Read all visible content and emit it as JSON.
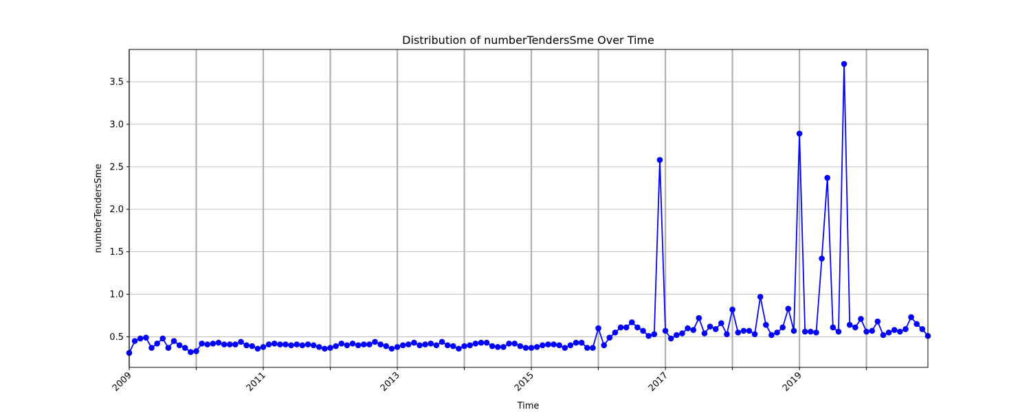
{
  "chart_data": {
    "type": "line",
    "title": "Distribution of numberTendersSme Over Time",
    "xlabel": "Time",
    "ylabel": "numberTendersSme",
    "xlim": [
      "2009-01",
      "2020-12"
    ],
    "ylim": [
      0.14,
      3.88
    ],
    "x_ticks": [
      {
        "date": "2009-01",
        "label": "2009"
      },
      {
        "date": "2010-01",
        "label": ""
      },
      {
        "date": "2011-01",
        "label": "2011"
      },
      {
        "date": "2012-01",
        "label": ""
      },
      {
        "date": "2013-01",
        "label": "2013"
      },
      {
        "date": "2014-01",
        "label": ""
      },
      {
        "date": "2015-01",
        "label": "2015"
      },
      {
        "date": "2016-01",
        "label": ""
      },
      {
        "date": "2017-01",
        "label": "2017"
      },
      {
        "date": "2018-01",
        "label": ""
      },
      {
        "date": "2019-01",
        "label": "2019"
      },
      {
        "date": "2020-01",
        "label": ""
      }
    ],
    "y_ticks": [
      {
        "value": 0.5,
        "label": "0.5"
      },
      {
        "value": 1.0,
        "label": "1.0"
      },
      {
        "value": 1.5,
        "label": "1.5"
      },
      {
        "value": 2.0,
        "label": "2.0"
      },
      {
        "value": 2.5,
        "label": "2.5"
      },
      {
        "value": 3.0,
        "label": "3.0"
      },
      {
        "value": 3.5,
        "label": "3.5"
      }
    ],
    "grid": true,
    "series": [
      {
        "color": "#0000ff",
        "marker": "circle",
        "points": [
          [
            "2009-01",
            0.31
          ],
          [
            "2009-02",
            0.45
          ],
          [
            "2009-03",
            0.48
          ],
          [
            "2009-04",
            0.49
          ],
          [
            "2009-05",
            0.37
          ],
          [
            "2009-06",
            0.42
          ],
          [
            "2009-07",
            0.48
          ],
          [
            "2009-08",
            0.37
          ],
          [
            "2009-09",
            0.45
          ],
          [
            "2009-10",
            0.4
          ],
          [
            "2009-11",
            0.37
          ],
          [
            "2009-12",
            0.32
          ],
          [
            "2010-01",
            0.33
          ],
          [
            "2010-02",
            0.42
          ],
          [
            "2010-03",
            0.41
          ],
          [
            "2010-04",
            0.42
          ],
          [
            "2010-05",
            0.43
          ],
          [
            "2010-06",
            0.41
          ],
          [
            "2010-07",
            0.41
          ],
          [
            "2010-08",
            0.41
          ],
          [
            "2010-09",
            0.44
          ],
          [
            "2010-10",
            0.4
          ],
          [
            "2010-11",
            0.39
          ],
          [
            "2010-12",
            0.36
          ],
          [
            "2011-01",
            0.38
          ],
          [
            "2011-02",
            0.41
          ],
          [
            "2011-03",
            0.42
          ],
          [
            "2011-04",
            0.41
          ],
          [
            "2011-05",
            0.41
          ],
          [
            "2011-06",
            0.4
          ],
          [
            "2011-07",
            0.41
          ],
          [
            "2011-08",
            0.4
          ],
          [
            "2011-09",
            0.41
          ],
          [
            "2011-10",
            0.4
          ],
          [
            "2011-11",
            0.38
          ],
          [
            "2011-12",
            0.36
          ],
          [
            "2012-01",
            0.37
          ],
          [
            "2012-02",
            0.39
          ],
          [
            "2012-03",
            0.42
          ],
          [
            "2012-04",
            0.4
          ],
          [
            "2012-05",
            0.42
          ],
          [
            "2012-06",
            0.4
          ],
          [
            "2012-07",
            0.41
          ],
          [
            "2012-08",
            0.41
          ],
          [
            "2012-09",
            0.44
          ],
          [
            "2012-10",
            0.41
          ],
          [
            "2012-11",
            0.39
          ],
          [
            "2012-12",
            0.36
          ],
          [
            "2013-01",
            0.38
          ],
          [
            "2013-02",
            0.4
          ],
          [
            "2013-03",
            0.41
          ],
          [
            "2013-04",
            0.43
          ],
          [
            "2013-05",
            0.4
          ],
          [
            "2013-06",
            0.41
          ],
          [
            "2013-07",
            0.42
          ],
          [
            "2013-08",
            0.4
          ],
          [
            "2013-09",
            0.44
          ],
          [
            "2013-10",
            0.4
          ],
          [
            "2013-11",
            0.39
          ],
          [
            "2013-12",
            0.36
          ],
          [
            "2014-01",
            0.39
          ],
          [
            "2014-02",
            0.4
          ],
          [
            "2014-03",
            0.42
          ],
          [
            "2014-04",
            0.43
          ],
          [
            "2014-05",
            0.43
          ],
          [
            "2014-06",
            0.39
          ],
          [
            "2014-07",
            0.38
          ],
          [
            "2014-08",
            0.38
          ],
          [
            "2014-09",
            0.42
          ],
          [
            "2014-10",
            0.42
          ],
          [
            "2014-11",
            0.39
          ],
          [
            "2014-12",
            0.37
          ],
          [
            "2015-01",
            0.37
          ],
          [
            "2015-02",
            0.38
          ],
          [
            "2015-03",
            0.4
          ],
          [
            "2015-04",
            0.41
          ],
          [
            "2015-05",
            0.41
          ],
          [
            "2015-06",
            0.4
          ],
          [
            "2015-07",
            0.37
          ],
          [
            "2015-08",
            0.4
          ],
          [
            "2015-09",
            0.43
          ],
          [
            "2015-10",
            0.43
          ],
          [
            "2015-11",
            0.37
          ],
          [
            "2015-12",
            0.37
          ],
          [
            "2016-01",
            0.6
          ],
          [
            "2016-02",
            0.4
          ],
          [
            "2016-03",
            0.49
          ],
          [
            "2016-04",
            0.55
          ],
          [
            "2016-05",
            0.61
          ],
          [
            "2016-06",
            0.61
          ],
          [
            "2016-07",
            0.67
          ],
          [
            "2016-08",
            0.61
          ],
          [
            "2016-09",
            0.57
          ],
          [
            "2016-10",
            0.51
          ],
          [
            "2016-11",
            0.53
          ],
          [
            "2016-12",
            2.58
          ],
          [
            "2017-01",
            0.57
          ],
          [
            "2017-02",
            0.48
          ],
          [
            "2017-03",
            0.52
          ],
          [
            "2017-04",
            0.54
          ],
          [
            "2017-05",
            0.6
          ],
          [
            "2017-06",
            0.58
          ],
          [
            "2017-07",
            0.72
          ],
          [
            "2017-08",
            0.54
          ],
          [
            "2017-09",
            0.62
          ],
          [
            "2017-10",
            0.59
          ],
          [
            "2017-11",
            0.66
          ],
          [
            "2017-12",
            0.53
          ],
          [
            "2018-01",
            0.82
          ],
          [
            "2018-02",
            0.55
          ],
          [
            "2018-03",
            0.57
          ],
          [
            "2018-04",
            0.57
          ],
          [
            "2018-05",
            0.53
          ],
          [
            "2018-06",
            0.97
          ],
          [
            "2018-07",
            0.64
          ],
          [
            "2018-08",
            0.52
          ],
          [
            "2018-09",
            0.55
          ],
          [
            "2018-10",
            0.61
          ],
          [
            "2018-11",
            0.83
          ],
          [
            "2018-12",
            0.57
          ],
          [
            "2019-01",
            2.89
          ],
          [
            "2019-02",
            0.56
          ],
          [
            "2019-03",
            0.56
          ],
          [
            "2019-04",
            0.55
          ],
          [
            "2019-05",
            1.42
          ],
          [
            "2019-06",
            2.37
          ],
          [
            "2019-07",
            0.61
          ],
          [
            "2019-08",
            0.56
          ],
          [
            "2019-09",
            3.71
          ],
          [
            "2019-10",
            0.64
          ],
          [
            "2019-11",
            0.61
          ],
          [
            "2019-12",
            0.71
          ],
          [
            "2020-01",
            0.56
          ],
          [
            "2020-02",
            0.57
          ],
          [
            "2020-03",
            0.68
          ],
          [
            "2020-04",
            0.52
          ],
          [
            "2020-05",
            0.55
          ],
          [
            "2020-06",
            0.58
          ],
          [
            "2020-07",
            0.56
          ],
          [
            "2020-08",
            0.59
          ],
          [
            "2020-09",
            0.73
          ],
          [
            "2020-10",
            0.65
          ],
          [
            "2020-11",
            0.59
          ],
          [
            "2020-12",
            0.51
          ]
        ]
      }
    ]
  }
}
